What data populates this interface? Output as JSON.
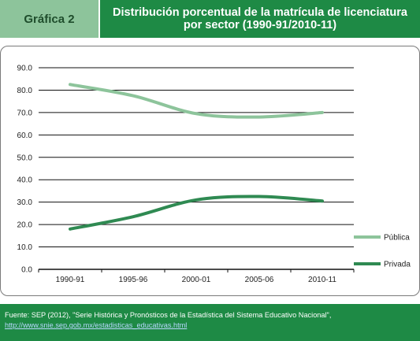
{
  "header": {
    "label": "Gráfica 2",
    "title": "Distribución porcentual de la matrícula de licenciatura por sector (1990-91/2010-11)"
  },
  "colors": {
    "header_label_bg": "#8dc49b",
    "header_title_bg": "#1e8a45",
    "publica": "#8dc49b",
    "privada": "#2f8a52"
  },
  "chart_data": {
    "type": "line",
    "categories": [
      "1990-91",
      "1995-96",
      "2000-01",
      "2005-06",
      "2010-11"
    ],
    "series": [
      {
        "name": "Pública",
        "values": [
          82.5,
          77.5,
          69.5,
          68.0,
          70.0
        ]
      },
      {
        "name": "Privada",
        "values": [
          18.0,
          23.5,
          31.0,
          32.5,
          30.5
        ]
      }
    ],
    "yticks": [
      "90.0",
      "80.0",
      "70.0",
      "60.0",
      "50.0",
      "40.0",
      "30.0",
      "20.0",
      "10.0",
      "0.0"
    ],
    "ylim": [
      0,
      90
    ],
    "grid": true,
    "legend_position": "right"
  },
  "footer": {
    "source": "Fuente: SEP (2012), \"Serie Histórica y Pronósticos de la Estadística del Sistema Educativo Nacional\",",
    "url": "http://www.snie.sep.gob.mx/estadisticas_educativas.html"
  }
}
